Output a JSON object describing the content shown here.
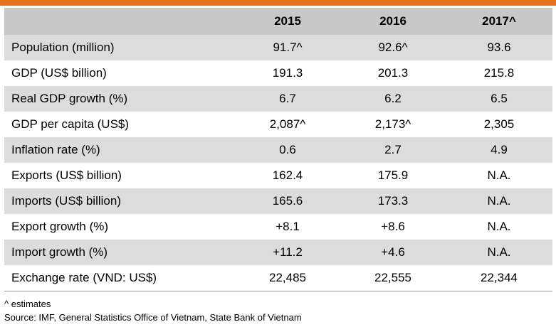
{
  "table": {
    "columns": [
      "",
      "2015",
      "2016",
      "2017^"
    ],
    "rows": [
      {
        "label": "Population (million)",
        "values": [
          "91.7^",
          "92.6^",
          "93.6"
        ]
      },
      {
        "label": "GDP (US$ billion)",
        "values": [
          "191.3",
          "201.3",
          "215.8"
        ]
      },
      {
        "label": "Real GDP growth (%)",
        "values": [
          "6.7",
          "6.2",
          "6.5"
        ]
      },
      {
        "label": "GDP per capita (US$)",
        "values": [
          "2,087^",
          "2,173^",
          "2,305"
        ]
      },
      {
        "label": "Inflation rate (%)",
        "values": [
          "0.6",
          "2.7",
          "4.9"
        ]
      },
      {
        "label": "Exports (US$ billion)",
        "values": [
          "162.4",
          "175.9",
          "N.A."
        ]
      },
      {
        "label": "Imports (US$ billion)",
        "values": [
          "165.6",
          "173.3",
          "N.A."
        ]
      },
      {
        "label": "Export growth (%)",
        "values": [
          "+8.1",
          "+8.6",
          "N.A."
        ]
      },
      {
        "label": "Import growth (%)",
        "values": [
          "+11.2",
          "+4.6",
          "N.A."
        ]
      },
      {
        "label": "Exchange rate (VND: US$)",
        "values": [
          "22,485",
          "22,555",
          "22,344"
        ]
      }
    ]
  },
  "notes": {
    "estimates": "^ estimates",
    "source": "Source: IMF, General Statistics Office of Vietnam, State Bank of Vietnam"
  },
  "colors": {
    "accent_bar": "#e8731f",
    "header_bg": "#c8c8c8",
    "shaded_row_bg": "#dcdcdc"
  }
}
